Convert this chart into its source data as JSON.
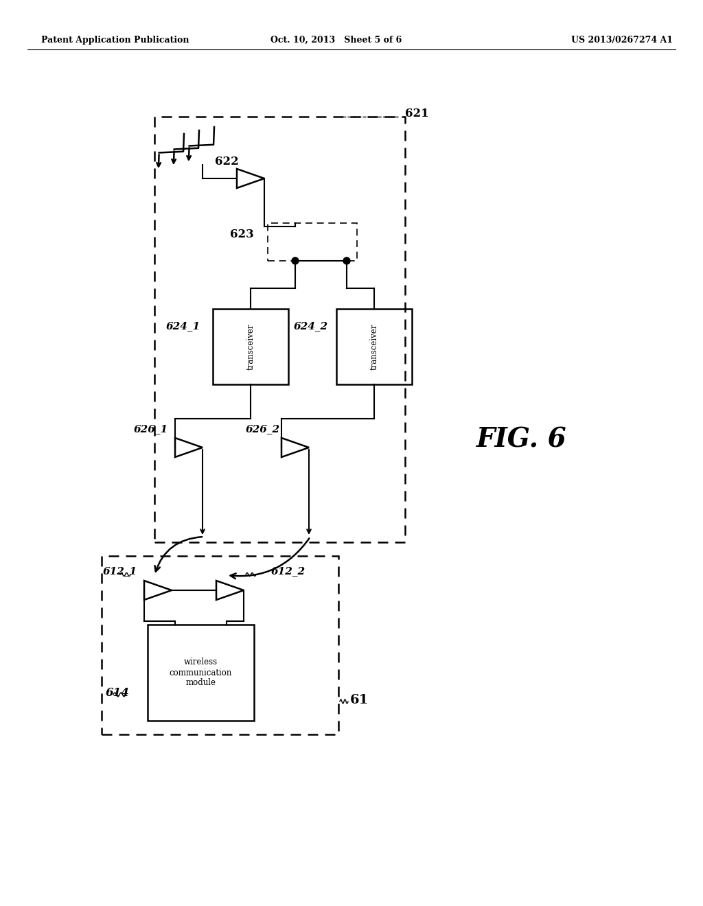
{
  "bg_color": "#ffffff",
  "header_left": "Patent Application Publication",
  "header_mid": "Oct. 10, 2013   Sheet 5 of 6",
  "header_right": "US 2013/0267274 A1",
  "fig_label": "FIG. 6",
  "wcm_text": "wireless\ncommunication\nmodule"
}
